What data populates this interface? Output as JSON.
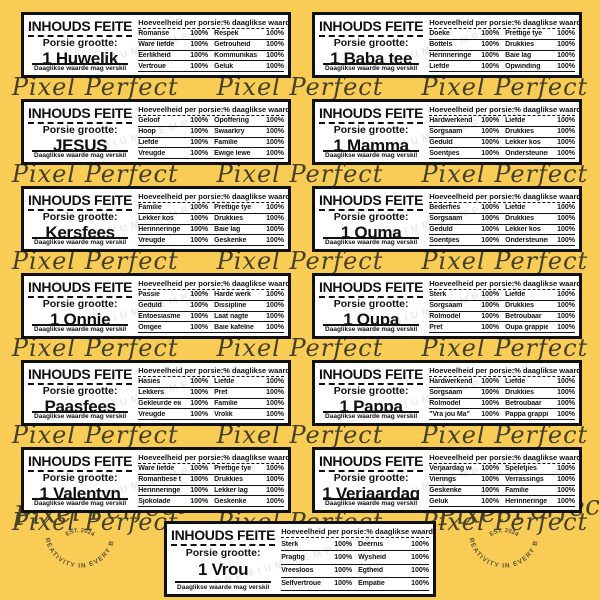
{
  "background_color": "#F9CD55",
  "watermark": {
    "script_text": "Pixel Perfect",
    "stamp_est": "EST. 2024",
    "stamp_arc": "CREATIVITY IN EVERY BIT",
    "ghost_text": "PREMIUM TEMPLATES"
  },
  "label_common": {
    "title": "INHOUDS FEITE",
    "portion_label": "Porsie grootte:",
    "footer": "Daaglikse waarde mag verskil",
    "amount_header": "Hoeveelheid per porsie:",
    "daily_header": "% daaglikse waarde"
  },
  "labels": [
    {
      "name": "1 Huwelik",
      "rows": [
        [
          "Romanse",
          "100%",
          "Respek",
          "100%"
        ],
        [
          "Ware liefde",
          "100%",
          "Getrouheid",
          "100%"
        ],
        [
          "Eerlikheid",
          "100%",
          "Kommunikasie",
          "100%"
        ],
        [
          "Vertroue",
          "100%",
          "Geluk",
          "100%"
        ]
      ]
    },
    {
      "name": "1 Baba tee",
      "rows": [
        [
          "Doeke",
          "100%",
          "Prettige tye",
          "100%"
        ],
        [
          "Bottels",
          "100%",
          "Drukkies",
          "100%"
        ],
        [
          "Herinneringe",
          "100%",
          "Baie lag",
          "100%"
        ],
        [
          "Liefde",
          "100%",
          "Opwinding",
          "100%"
        ]
      ]
    },
    {
      "name": "JESUS",
      "rows": [
        [
          "Geloof",
          "100%",
          "Opoffering",
          "100%"
        ],
        [
          "Hoop",
          "100%",
          "Swaarkry",
          "100%"
        ],
        [
          "Liefde",
          "100%",
          "Familie",
          "100%"
        ],
        [
          "Vreugde",
          "100%",
          "Ewige lewe",
          "100%"
        ]
      ]
    },
    {
      "name": "1 Mamma",
      "rows": [
        [
          "Hardwerkend",
          "100%",
          "Liefde",
          "100%"
        ],
        [
          "Sorgsaam",
          "100%",
          "Drukkies",
          "100%"
        ],
        [
          "Geduld",
          "100%",
          "Lekker kos",
          "100%"
        ],
        [
          "Soentjies",
          "100%",
          "Ondersteunend",
          "100%"
        ]
      ]
    },
    {
      "name": "Kersfees",
      "rows": [
        [
          "Familie",
          "100%",
          "Prettige tye",
          "100%"
        ],
        [
          "Lekker kos",
          "100%",
          "Drukkies",
          "100%"
        ],
        [
          "Herinneringe",
          "100%",
          "Baie lag",
          "100%"
        ],
        [
          "Vreugde",
          "100%",
          "Geskenke",
          "100%"
        ]
      ]
    },
    {
      "name": "1 Ouma",
      "rows": [
        [
          "Bederfies",
          "100%",
          "Liefde",
          "100%"
        ],
        [
          "Sorgsaam",
          "100%",
          "Drukkies",
          "100%"
        ],
        [
          "Geduld",
          "100%",
          "Lekker kos",
          "100%"
        ],
        [
          "Soentjies",
          "100%",
          "Ondersteunend",
          "100%"
        ]
      ]
    },
    {
      "name": "1 Onnie",
      "rows": [
        [
          "Passie",
          "100%",
          "Harde werk",
          "100%"
        ],
        [
          "Geduld",
          "100%",
          "Dissipline",
          "100%"
        ],
        [
          "Entoesiasme",
          "100%",
          "Laat nagte",
          "100%"
        ],
        [
          "Omgee",
          "100%",
          "Baie kafeïne",
          "100%"
        ]
      ]
    },
    {
      "name": "1 Oupa",
      "rows": [
        [
          "Sterk",
          "100%",
          "Liefde",
          "100%"
        ],
        [
          "Sorgsaam",
          "100%",
          "Drukkies",
          "100%"
        ],
        [
          "Rolmodel",
          "100%",
          "Betroubaar",
          "100%"
        ],
        [
          "Pret",
          "100%",
          "Oupa grappies",
          "100%"
        ]
      ]
    },
    {
      "name": "Paasfees",
      "rows": [
        [
          "Hasies",
          "100%",
          "Liefde",
          "100%"
        ],
        [
          "Lekkers",
          "100%",
          "Pret",
          "100%"
        ],
        [
          "Gekleurde eiers",
          "100%",
          "Familie",
          "100%"
        ],
        [
          "Vreugde",
          "100%",
          "Vrolik",
          "100%"
        ]
      ]
    },
    {
      "name": "1 Pappa",
      "rows": [
        [
          "Hardwerkend",
          "100%",
          "Liefde",
          "100%"
        ],
        [
          "Sorgsaam",
          "100%",
          "Drukkies",
          "100%"
        ],
        [
          "Rolmodel",
          "100%",
          "Betroubaar",
          "100%"
        ],
        [
          "\"Vra jou Ma\"",
          "100%",
          "Pappa grappies",
          "100%"
        ]
      ]
    },
    {
      "name": "1 Valentyn",
      "rows": [
        [
          "Ware liefde",
          "100%",
          "Prettige tye",
          "100%"
        ],
        [
          "Romantiese tye",
          "100%",
          "Drukkies",
          "100%"
        ],
        [
          "Herinneringe",
          "100%",
          "Lekker lag",
          "100%"
        ],
        [
          "Sjokolade",
          "100%",
          "Geskenke",
          "100%"
        ]
      ]
    },
    {
      "name": "1 Verjaardag",
      "rows": [
        [
          "Verjaardag wense",
          "100%",
          "Speletjies",
          "100%"
        ],
        [
          "Vierings",
          "100%",
          "Verrassings",
          "100%"
        ],
        [
          "Geskenke",
          "100%",
          "Familie",
          "100%"
        ],
        [
          "Geluk",
          "100%",
          "Herinneringe",
          "100%"
        ]
      ]
    },
    {
      "name": "1 Vrou",
      "rows": [
        [
          "Sterk",
          "100%",
          "Deernis",
          "100%"
        ],
        [
          "Pragtig",
          "100%",
          "Wysheid",
          "100%"
        ],
        [
          "Vreesloos",
          "100%",
          "Egtheid",
          "100%"
        ],
        [
          "Selfvertroue",
          "100%",
          "Empatie",
          "100%"
        ]
      ]
    }
  ]
}
